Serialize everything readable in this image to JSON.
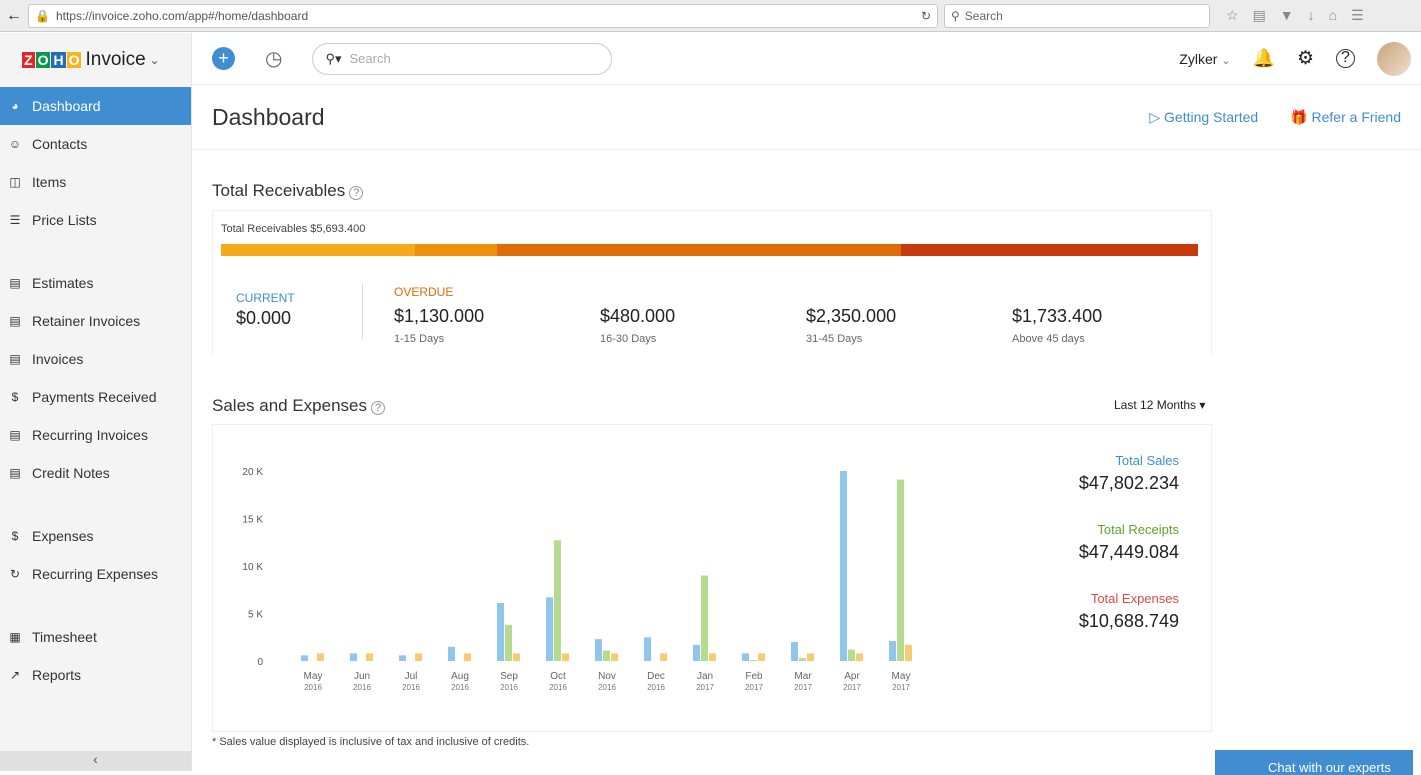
{
  "browser": {
    "url": "https://invoice.zoho.com/app#/home/dashboard",
    "search_placeholder": "Search"
  },
  "app": {
    "logo_text": "ZOHO",
    "name": "Invoice"
  },
  "topbar": {
    "search_placeholder": "Search",
    "org": "Zylker"
  },
  "sidebar": {
    "items": [
      {
        "label": "Dashboard",
        "icon": "dashboard-icon",
        "active": true
      },
      {
        "label": "Contacts",
        "icon": "user-icon"
      },
      {
        "label": "Items",
        "icon": "basket-icon"
      },
      {
        "label": "Price Lists",
        "icon": "list-icon"
      },
      {
        "label": "Estimates",
        "icon": "estimate-icon"
      },
      {
        "label": "Retainer Invoices",
        "icon": "document-icon"
      },
      {
        "label": "Invoices",
        "icon": "document-icon"
      },
      {
        "label": "Payments Received",
        "icon": "dollar-icon"
      },
      {
        "label": "Recurring Invoices",
        "icon": "document-icon"
      },
      {
        "label": "Credit Notes",
        "icon": "credit-note-icon"
      },
      {
        "label": "Expenses",
        "icon": "dollar-icon"
      },
      {
        "label": "Recurring Expenses",
        "icon": "recurring-icon"
      },
      {
        "label": "Timesheet",
        "icon": "calendar-icon"
      },
      {
        "label": "Reports",
        "icon": "chart-icon"
      }
    ]
  },
  "header": {
    "title": "Dashboard",
    "getting_started": "Getting Started",
    "refer": "Refer a Friend"
  },
  "receivables": {
    "title": "Total Receivables",
    "total_label": "Total Receivables $5,693.400",
    "segments": [
      {
        "value": 1130,
        "color": "#f7a91c"
      },
      {
        "value": 480,
        "color": "#ef8f0e"
      },
      {
        "value": 2350,
        "color": "#e06b0a"
      },
      {
        "value": 1733.4,
        "color": "#c73a0c"
      }
    ],
    "current": {
      "label": "CURRENT",
      "value": "$0.000"
    },
    "overdue_label": "OVERDUE",
    "buckets": [
      {
        "value": "$1,130.000",
        "range": "1-15 Days"
      },
      {
        "value": "$480.000",
        "range": "16-30 Days"
      },
      {
        "value": "$2,350.000",
        "range": "31-45 Days"
      },
      {
        "value": "$1,733.400",
        "range": "Above 45 days"
      }
    ]
  },
  "sales": {
    "title": "Sales and Expenses",
    "period": "Last 12 Months",
    "totals": [
      {
        "label": "Total Sales",
        "value": "$47,802.234",
        "color": "#408dd2"
      },
      {
        "label": "Total Receipts",
        "value": "$47,449.084",
        "color": "#5fa52a"
      },
      {
        "label": "Total Expenses",
        "value": "$10,688.749",
        "color": "#e04848"
      }
    ],
    "note": "* Sales value displayed is inclusive of tax and inclusive of credits."
  },
  "chart_data": {
    "type": "bar",
    "ylim": [
      0,
      20000
    ],
    "yticks": [
      "0",
      "5 K",
      "10 K",
      "15 K",
      "20 K"
    ],
    "categories": [
      [
        "May",
        "2016"
      ],
      [
        "Jun",
        "2016"
      ],
      [
        "Jul",
        "2016"
      ],
      [
        "Aug",
        "2016"
      ],
      [
        "Sep",
        "2016"
      ],
      [
        "Oct",
        "2016"
      ],
      [
        "Nov",
        "2016"
      ],
      [
        "Dec",
        "2016"
      ],
      [
        "Jan",
        "2017"
      ],
      [
        "Feb",
        "2017"
      ],
      [
        "Mar",
        "2017"
      ],
      [
        "Apr",
        "2017"
      ],
      [
        "May",
        "2017"
      ]
    ],
    "series": [
      {
        "color": "#90c6ec",
        "values": [
          600,
          800,
          600,
          1500,
          6100,
          6700,
          2300,
          2500,
          1700,
          800,
          2000,
          20000,
          2100
        ]
      },
      {
        "color": "#b5dc8e",
        "values": [
          0,
          0,
          0,
          0,
          3800,
          12700,
          1100,
          0,
          9000,
          100,
          300,
          1200,
          19100
        ]
      },
      {
        "color": "#f4cd6e",
        "values": [
          800,
          800,
          800,
          800,
          800,
          800,
          800,
          800,
          800,
          800,
          800,
          800,
          1700
        ]
      }
    ]
  },
  "chat": {
    "label": "Chat with our experts"
  }
}
